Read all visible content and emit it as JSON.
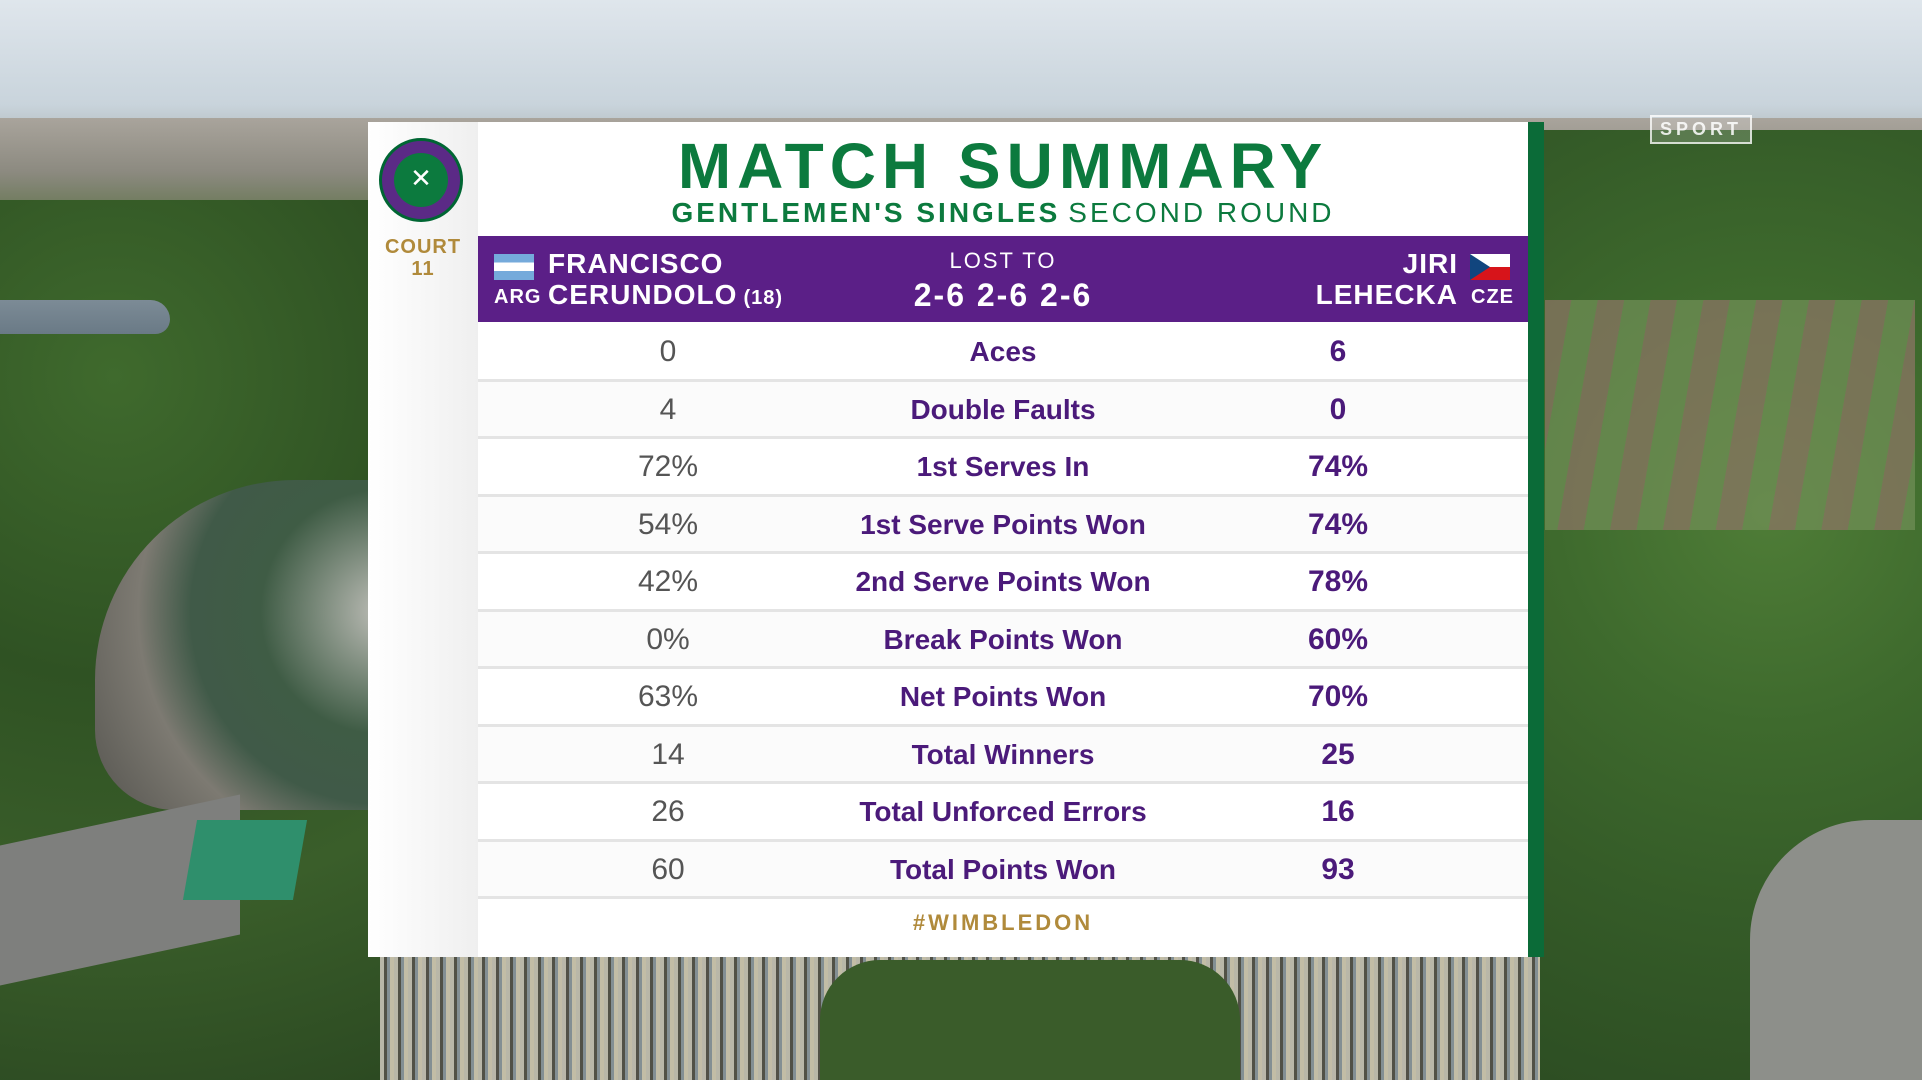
{
  "broadcaster": {
    "logo_text": "SPORT"
  },
  "sidebar": {
    "court_label": "COURT",
    "court_number": "11"
  },
  "header": {
    "title": "MATCH SUMMARY",
    "event": "GENTLEMEN'S SINGLES",
    "round": "SECOND ROUND"
  },
  "players": {
    "left": {
      "first_name": "FRANCISCO",
      "last_name": "CERUNDOLO",
      "seed": "(18)",
      "country": "ARG"
    },
    "right": {
      "first_name": "JIRI",
      "last_name": "LEHECKA",
      "country": "CZE"
    }
  },
  "result": {
    "label": "LOST TO",
    "score": "2-6 2-6 2-6"
  },
  "stats": [
    {
      "label": "Aces",
      "left": "0",
      "right": "6"
    },
    {
      "label": "Double Faults",
      "left": "4",
      "right": "0"
    },
    {
      "label": "1st Serves In",
      "left": "72%",
      "right": "74%"
    },
    {
      "label": "1st Serve Points Won",
      "left": "54%",
      "right": "74%"
    },
    {
      "label": "2nd Serve Points Won",
      "left": "42%",
      "right": "78%"
    },
    {
      "label": "Break Points Won",
      "left": "0%",
      "right": "60%"
    },
    {
      "label": "Net Points Won",
      "left": "63%",
      "right": "70%"
    },
    {
      "label": "Total Winners",
      "left": "14",
      "right": "25"
    },
    {
      "label": "Total Unforced Errors",
      "left": "26",
      "right": "16"
    },
    {
      "label": "Total Points Won",
      "left": "60",
      "right": "93"
    }
  ],
  "footer": {
    "hashtag": "#WIMBLEDON"
  },
  "colors": {
    "wimbledon_green": "#0c7a3e",
    "wimbledon_purple": "#5b1f87",
    "gold": "#b08a3b"
  }
}
